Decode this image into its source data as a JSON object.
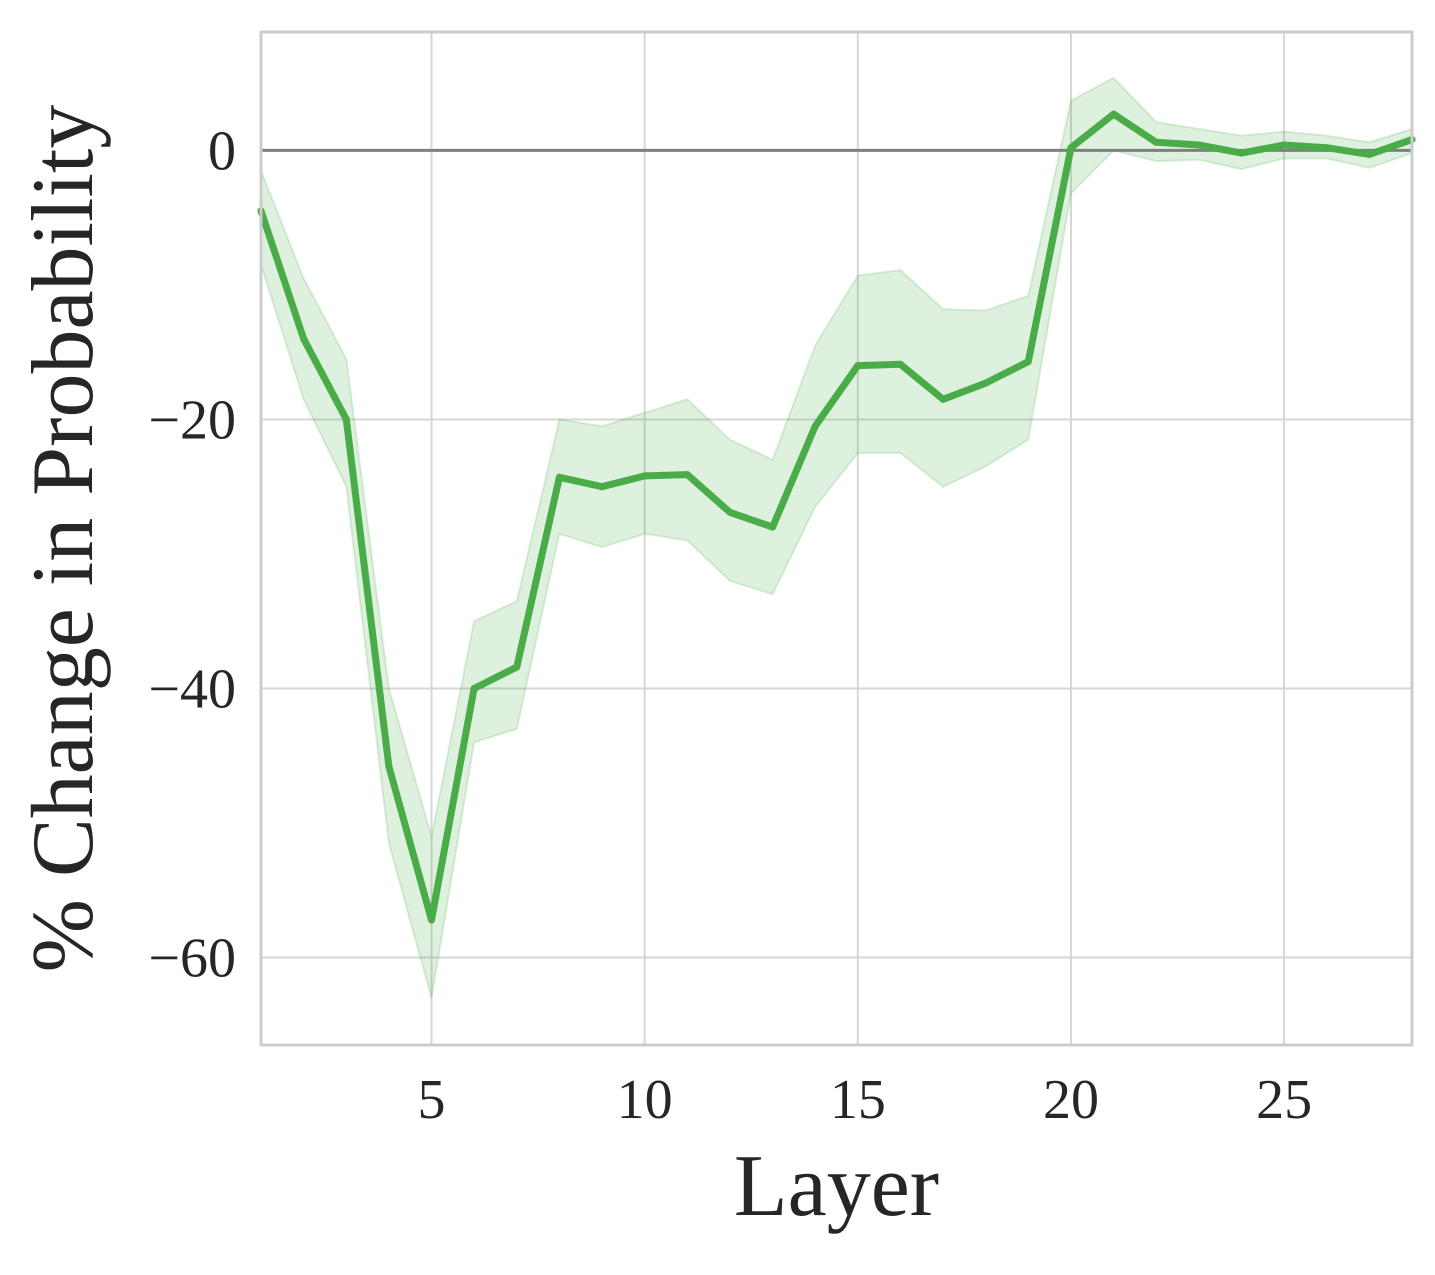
{
  "chart_data": {
    "type": "line",
    "xlabel": "Layer",
    "ylabel": "% Change in Probability",
    "xlim": [
      1,
      28
    ],
    "ylim": [
      -66.5,
      8.8
    ],
    "x_ticks": [
      5,
      10,
      15,
      20,
      25
    ],
    "y_ticks": [
      0,
      -20,
      -40,
      -60
    ],
    "x_tick_labels": [
      "5",
      "10",
      "15",
      "20",
      "25"
    ],
    "y_tick_labels": [
      "0",
      "−20",
      "−40",
      "−60"
    ],
    "grid": true,
    "reference_line": 0,
    "series": [
      {
        "color": "#4aac48",
        "band_color": "#4aac48",
        "x": [
          1,
          2,
          3,
          4,
          5,
          6,
          7,
          8,
          9,
          10,
          11,
          12,
          13,
          14,
          15,
          16,
          17,
          18,
          19,
          20,
          21,
          22,
          23,
          24,
          25,
          26,
          27,
          28
        ],
        "values": [
          -4.5,
          -14.0,
          -20.0,
          -45.8,
          -57.2,
          -40.0,
          -38.4,
          -24.3,
          -25.0,
          -24.2,
          -24.1,
          -26.9,
          -28.0,
          -20.5,
          -16.0,
          -15.9,
          -18.5,
          -17.3,
          -15.7,
          0.2,
          2.7,
          0.6,
          0.4,
          -0.2,
          0.4,
          0.2,
          -0.3,
          0.8
        ],
        "lower": [
          -8.5,
          -18.5,
          -25.0,
          -51.5,
          -63.0,
          -44.0,
          -43.0,
          -28.5,
          -29.5,
          -28.5,
          -29.0,
          -32.0,
          -33.0,
          -26.5,
          -22.5,
          -22.5,
          -25.0,
          -23.5,
          -21.5,
          -3.2,
          0.0,
          -0.8,
          -0.7,
          -1.4,
          -0.6,
          -0.6,
          -1.3,
          -0.2
        ],
        "upper": [
          -1.5,
          -9.5,
          -15.5,
          -40.0,
          -51.0,
          -35.0,
          -33.5,
          -20.0,
          -20.5,
          -19.5,
          -18.5,
          -21.5,
          -23.0,
          -14.5,
          -9.3,
          -8.9,
          -11.8,
          -11.9,
          -10.8,
          3.7,
          5.4,
          2.1,
          1.6,
          1.1,
          1.4,
          1.1,
          0.6,
          1.6
        ]
      }
    ]
  }
}
